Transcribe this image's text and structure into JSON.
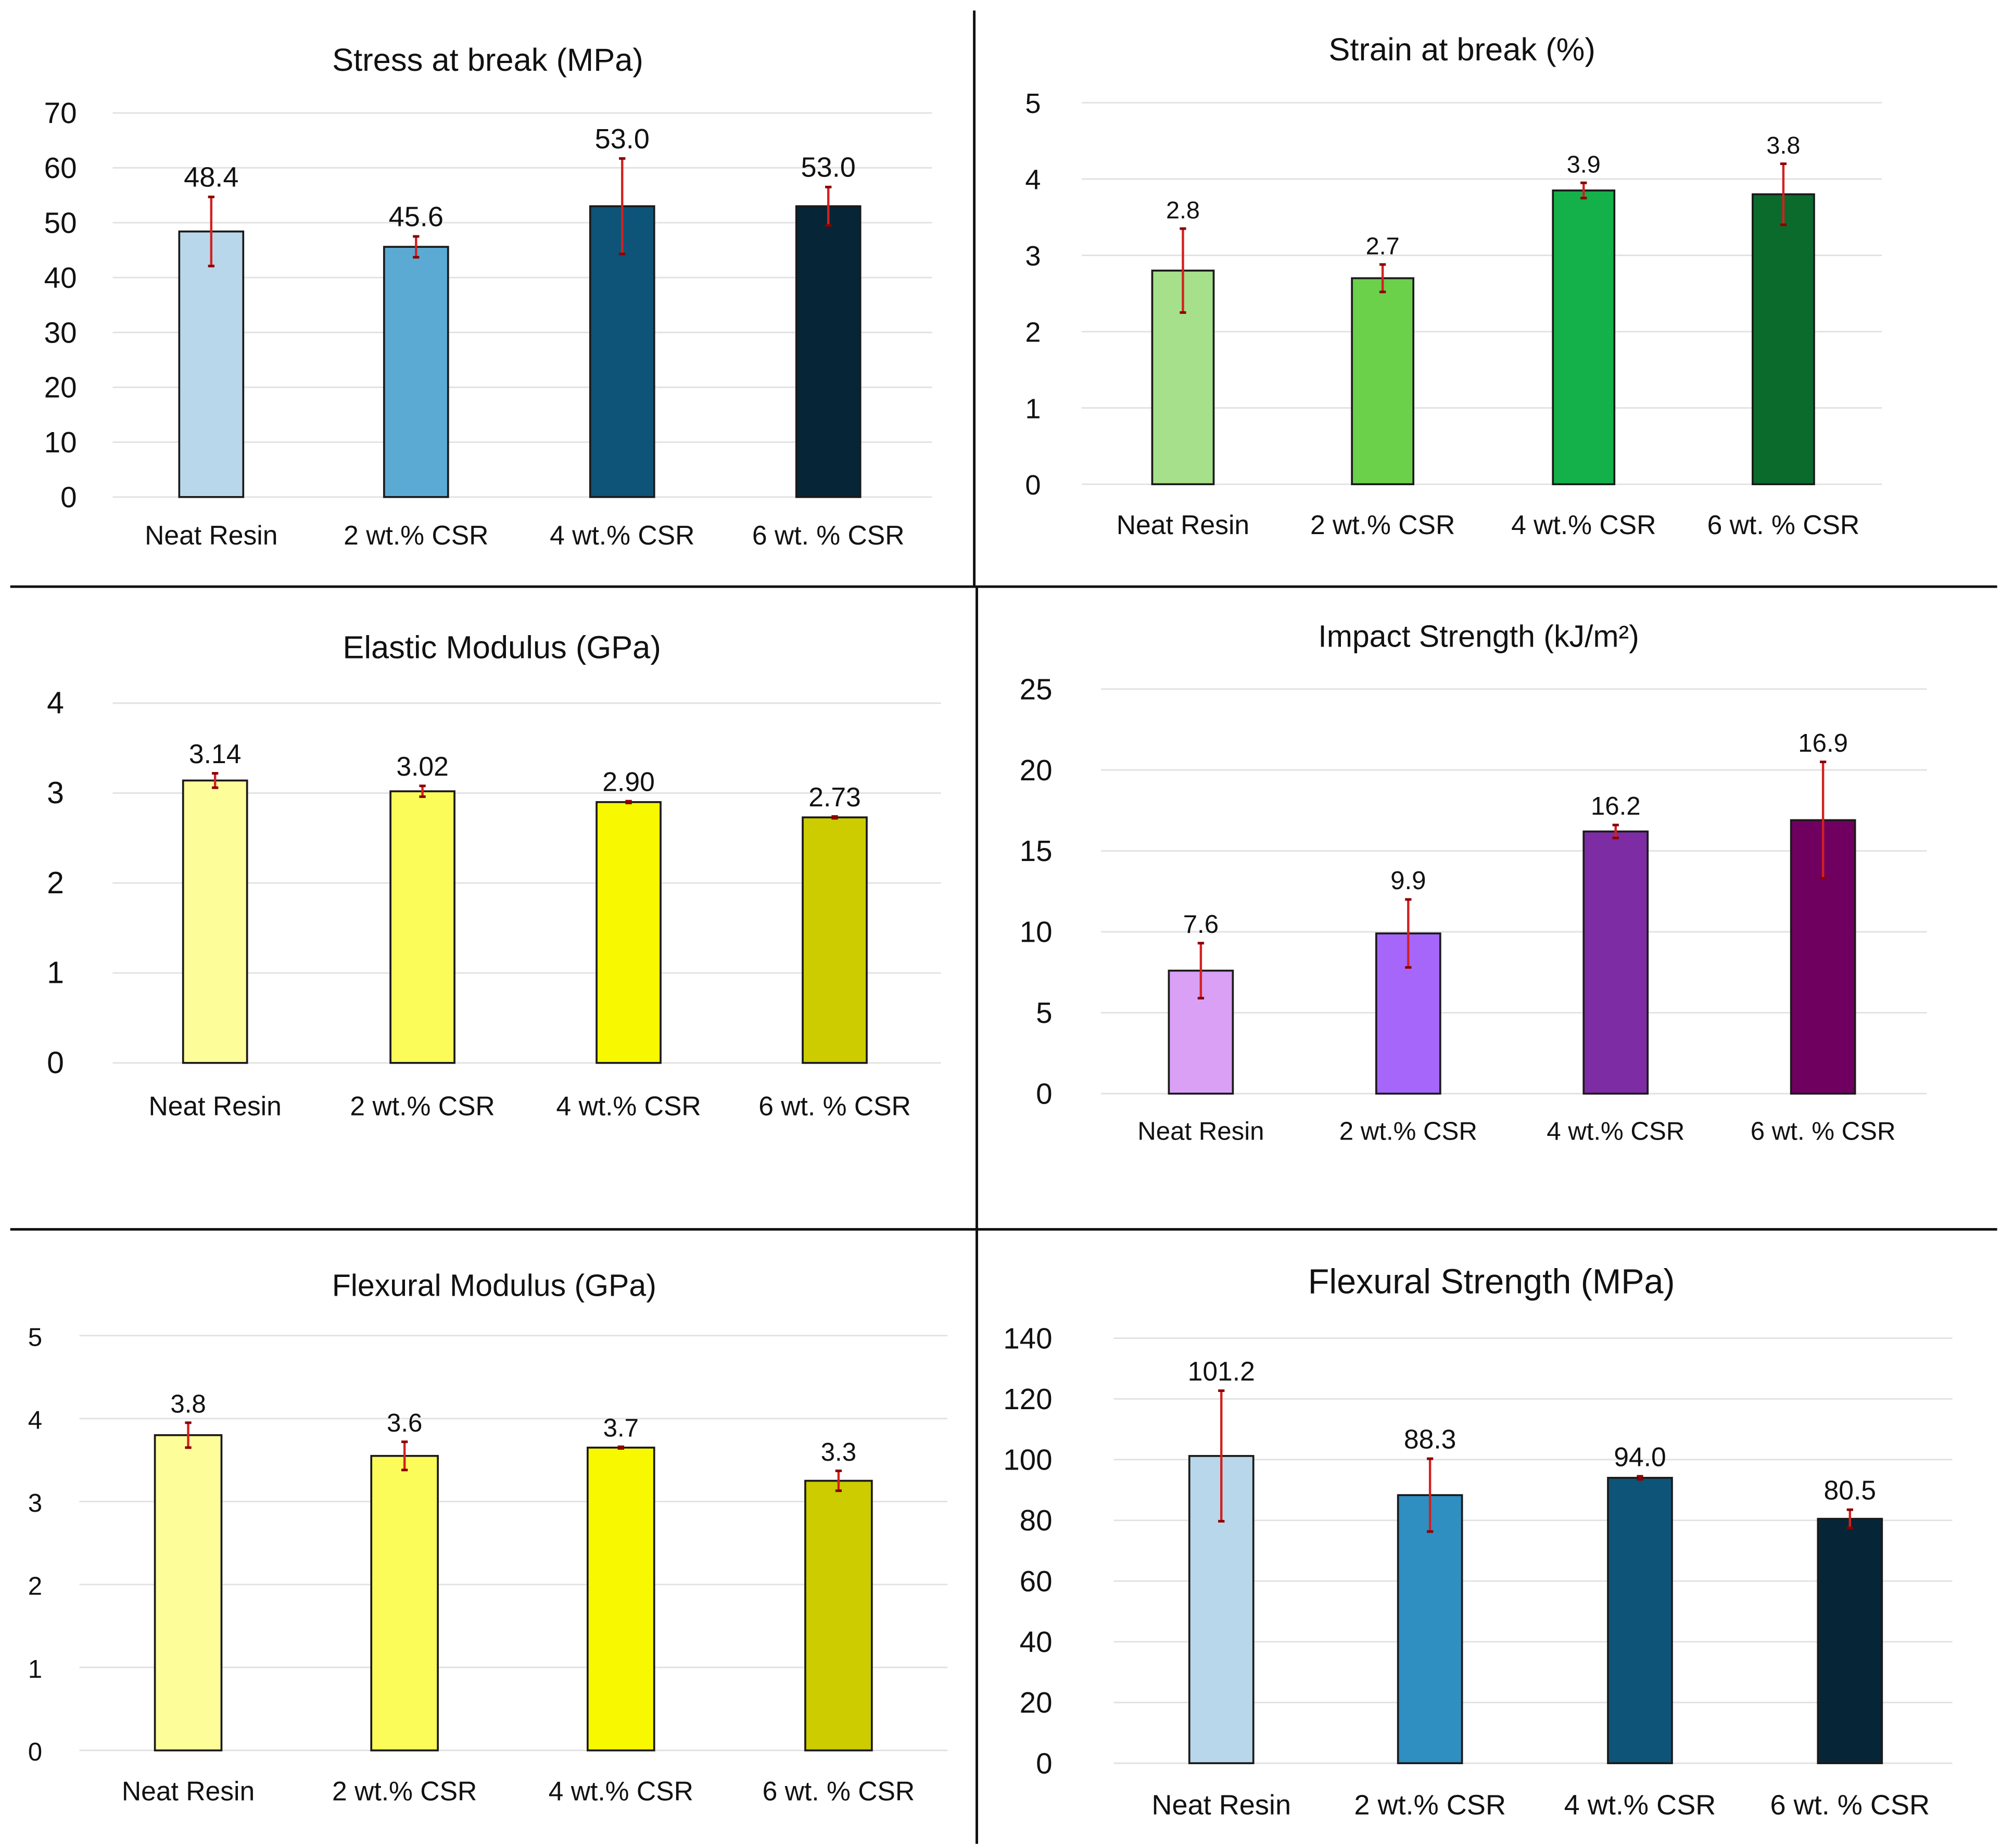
{
  "chart_data": [
    {
      "type": "bar",
      "title": "Stress at break (MPa)",
      "categories": [
        "Neat Resin",
        "2 wt.% CSR",
        "4 wt.% CSR",
        "6 wt. % CSR"
      ],
      "values": [
        48.4,
        45.6,
        53.0,
        53.0
      ],
      "value_labels": [
        "48.4",
        "45.6",
        "53.0",
        "53.0"
      ],
      "errors": [
        6.3,
        1.9,
        8.7,
        3.5
      ],
      "ylim": [
        0,
        70
      ],
      "yticks": [
        0,
        10,
        20,
        30,
        40,
        50,
        60,
        70
      ],
      "colors": [
        "#b9d7ea",
        "#5aaad4",
        "#0d5478",
        "#062638"
      ],
      "grid": true,
      "xlabel": "",
      "ylabel": ""
    },
    {
      "type": "bar",
      "title": "Strain at break (%)",
      "categories": [
        "Neat Resin",
        "2 wt.% CSR",
        "4 wt.% CSR",
        "6 wt. % CSR"
      ],
      "values": [
        2.8,
        2.7,
        3.85,
        3.8
      ],
      "value_labels": [
        "2.8",
        "2.7",
        "3.9",
        "3.8"
      ],
      "errors": [
        0.55,
        0.18,
        0.1,
        0.4
      ],
      "ylim": [
        0,
        5
      ],
      "yticks": [
        0,
        1,
        2,
        3,
        4,
        5
      ],
      "colors": [
        "#a6e08a",
        "#6bd04a",
        "#14b04a",
        "#0b6b2c"
      ],
      "grid": true,
      "xlabel": "",
      "ylabel": ""
    },
    {
      "type": "bar",
      "title": "Elastic Modulus (GPa)",
      "categories": [
        "Neat Resin",
        "2 wt.% CSR",
        "4 wt.% CSR",
        "6 wt. % CSR"
      ],
      "values": [
        3.14,
        3.02,
        2.9,
        2.73
      ],
      "value_labels": [
        "3.14",
        "3.02",
        "2.90",
        "2.73"
      ],
      "errors": [
        0.08,
        0.06,
        0.01,
        0.01
      ],
      "ylim": [
        0,
        4
      ],
      "yticks": [
        0,
        1,
        2,
        3,
        4
      ],
      "colors": [
        "#fdfd9a",
        "#fbfb5a",
        "#f8f800",
        "#cccc00"
      ],
      "grid": true,
      "xlabel": "",
      "ylabel": ""
    },
    {
      "type": "bar",
      "title": "Impact Strength (kJ/m²)",
      "categories": [
        "Neat Resin",
        "2 wt.% CSR",
        "4 wt.% CSR",
        "6 wt. % CSR"
      ],
      "values": [
        7.6,
        9.9,
        16.2,
        16.9
      ],
      "value_labels": [
        "7.6",
        "9.9",
        "16.2",
        "16.9"
      ],
      "errors": [
        1.7,
        2.1,
        0.4,
        3.6
      ],
      "ylim": [
        0,
        25
      ],
      "yticks": [
        0,
        5,
        10,
        15,
        20,
        25
      ],
      "colors": [
        "#d9a0f5",
        "#a666fa",
        "#7d2ca3",
        "#700060"
      ],
      "grid": true,
      "xlabel": "",
      "ylabel": ""
    },
    {
      "type": "bar",
      "title": "Flexural Modulus (GPa)",
      "categories": [
        "Neat Resin",
        "2 wt.% CSR",
        "4 wt.% CSR",
        "6 wt. % CSR"
      ],
      "values": [
        3.8,
        3.55,
        3.65,
        3.25
      ],
      "value_labels": [
        "3.8",
        "3.6",
        "3.7",
        "3.3"
      ],
      "errors": [
        0.15,
        0.17,
        0.01,
        0.12
      ],
      "ylim": [
        0,
        5
      ],
      "yticks": [
        0,
        1,
        2,
        3,
        4,
        5
      ],
      "colors": [
        "#fdfd9a",
        "#fbfb5a",
        "#f8f800",
        "#cccc00"
      ],
      "grid": true,
      "xlabel": "",
      "ylabel": ""
    },
    {
      "type": "bar",
      "title": "Flexural Strength (MPa)",
      "categories": [
        "Neat Resin",
        "2 wt.% CSR",
        "4 wt.% CSR",
        "6 wt. % CSR"
      ],
      "values": [
        101.2,
        88.3,
        94.0,
        80.5
      ],
      "value_labels": [
        "101.2",
        "88.3",
        "94.0",
        "80.5"
      ],
      "errors": [
        21.5,
        12.0,
        0.5,
        3.0
      ],
      "ylim": [
        0,
        140
      ],
      "yticks": [
        0,
        20,
        40,
        60,
        80,
        100,
        120,
        140
      ],
      "colors": [
        "#b9d7ea",
        "#2f8fc0",
        "#0d5478",
        "#062638"
      ],
      "grid": true,
      "xlabel": "",
      "ylabel": ""
    }
  ],
  "error_bar_color": "#d42020"
}
